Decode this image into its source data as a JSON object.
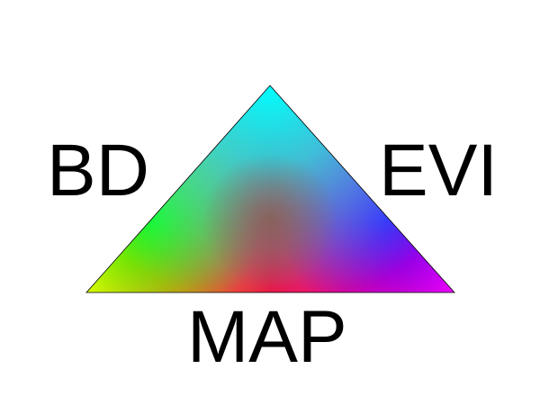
{
  "legend": {
    "labels": {
      "left": "BD",
      "right": "EVI",
      "bottom": "MAP"
    },
    "colors": {
      "top": "#00ffff",
      "upper_left": "#00ff00",
      "bottom_left": "#ffff00",
      "bottom_middle": "#ff0033",
      "bottom_right": "#ff00ff",
      "upper_right": "#3300ff",
      "center": "#8a5a4a",
      "outline": "#000000"
    }
  }
}
